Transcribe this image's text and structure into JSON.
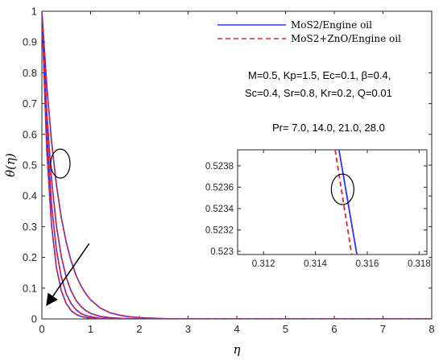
{
  "chart_data": {
    "type": "line",
    "xlabel": "η",
    "ylabel": "θ(η)",
    "xlim": [
      0,
      8
    ],
    "ylim": [
      0,
      1
    ],
    "xticks": [
      "0",
      "1",
      "2",
      "3",
      "4",
      "5",
      "6",
      "7",
      "8"
    ],
    "yticks": [
      "0",
      "0.1",
      "0.2",
      "0.3",
      "0.4",
      "0.5",
      "0.6",
      "0.7",
      "0.8",
      "0.9",
      "1"
    ],
    "grid": false,
    "legend_position": "top-right",
    "legend": [
      {
        "label": "MoS2/Engine oil",
        "color": "#3030ff",
        "style": "solid"
      },
      {
        "label": "MoS2+ZnO/Engine oil",
        "color": "#e8202a",
        "style": "dashed"
      }
    ],
    "annotations": {
      "params_line1": "M=0.5, Kp=1.5, Ec=0.1, β=0.4,",
      "params_line2": "Sc=0.4, Sr=0.8, Kr=0.2, Q=0.01",
      "pr_values": "Pr= 7.0, 14.0, 21.0, 28.0"
    },
    "series": [
      {
        "pr": 7.0,
        "values": [
          [
            0,
            1
          ],
          [
            0.1,
            0.759
          ],
          [
            0.2,
            0.574
          ],
          [
            0.3,
            0.434
          ],
          [
            0.4,
            0.328
          ],
          [
            0.5,
            0.249
          ],
          [
            0.6,
            0.188
          ],
          [
            0.7,
            0.142
          ],
          [
            0.8,
            0.108
          ],
          [
            0.9,
            0.082
          ],
          [
            1.0,
            0.062
          ],
          [
            1.2,
            0.035
          ],
          [
            1.4,
            0.02
          ],
          [
            1.6,
            0.012
          ],
          [
            1.8,
            0.007
          ],
          [
            2.0,
            0.004
          ],
          [
            2.5,
            0.001
          ],
          [
            3.0,
            0
          ],
          [
            8.0,
            0
          ]
        ]
      },
      {
        "pr": 14.0,
        "values": [
          [
            0,
            1
          ],
          [
            0.1,
            0.67
          ],
          [
            0.2,
            0.449
          ],
          [
            0.3,
            0.301
          ],
          [
            0.4,
            0.202
          ],
          [
            0.5,
            0.135
          ],
          [
            0.6,
            0.091
          ],
          [
            0.7,
            0.061
          ],
          [
            0.8,
            0.041
          ],
          [
            0.9,
            0.027
          ],
          [
            1.0,
            0.018
          ],
          [
            1.2,
            0.008
          ],
          [
            1.4,
            0.004
          ],
          [
            1.6,
            0.002
          ],
          [
            1.8,
            0.001
          ],
          [
            2.0,
            0
          ],
          [
            8.0,
            0
          ]
        ]
      },
      {
        "pr": 21.0,
        "values": [
          [
            0,
            1
          ],
          [
            0.1,
            0.607
          ],
          [
            0.2,
            0.368
          ],
          [
            0.3,
            0.223
          ],
          [
            0.4,
            0.135
          ],
          [
            0.5,
            0.082
          ],
          [
            0.6,
            0.05
          ],
          [
            0.7,
            0.03
          ],
          [
            0.8,
            0.018
          ],
          [
            0.9,
            0.011
          ],
          [
            1.0,
            0.007
          ],
          [
            1.2,
            0.002
          ],
          [
            1.4,
            0.001
          ],
          [
            1.6,
            0
          ],
          [
            8.0,
            0
          ]
        ]
      },
      {
        "pr": 28.0,
        "values": [
          [
            0,
            1
          ],
          [
            0.1,
            0.549
          ],
          [
            0.2,
            0.301
          ],
          [
            0.3,
            0.165
          ],
          [
            0.4,
            0.091
          ],
          [
            0.5,
            0.05
          ],
          [
            0.6,
            0.027
          ],
          [
            0.7,
            0.015
          ],
          [
            0.8,
            0.008
          ],
          [
            0.9,
            0.005
          ],
          [
            1.0,
            0.002
          ],
          [
            1.2,
            0.001
          ],
          [
            1.4,
            0
          ],
          [
            8.0,
            0
          ]
        ]
      }
    ],
    "inset": {
      "xlim": [
        0.311,
        0.3183
      ],
      "ylim": [
        0.52297,
        0.52395
      ],
      "xticks": [
        "0.312",
        "0.314",
        "0.316",
        "0.318"
      ],
      "yticks": [
        "0.523",
        "0.5232",
        "0.5234",
        "0.5236",
        "0.5238"
      ],
      "series": [
        {
          "name": "MoS2/Engine oil",
          "values": [
            [
              0.31491,
              0.52395
            ],
            [
              0.3156,
              0.52297
            ]
          ]
        },
        {
          "name": "MoS2+ZnO/Engine oil",
          "values": [
            [
              0.31476,
              0.52395
            ],
            [
              0.3154,
              0.52297
            ]
          ]
        }
      ],
      "ellipse_center": [
        0.31505,
        0.52358
      ]
    }
  }
}
